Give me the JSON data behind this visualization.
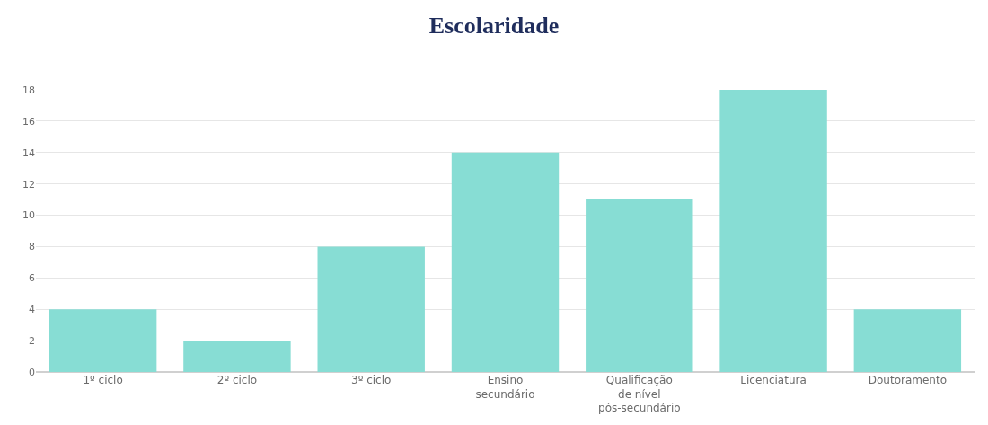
{
  "chart_data": {
    "type": "bar",
    "title": "Escolaridade",
    "categories": [
      "1º ciclo",
      "2º ciclo",
      "3º ciclo",
      "Ensino\nsecundário",
      "Qualificação\nde nível\npós-secundário",
      "Licenciatura",
      "Doutoramento"
    ],
    "values": [
      4,
      2,
      8,
      14,
      11,
      18,
      4
    ],
    "color": "#87ddd4",
    "ylim": [
      0,
      18
    ],
    "yticks": [
      0,
      2,
      4,
      6,
      8,
      10,
      12,
      14,
      16,
      18
    ],
    "grid": "y"
  }
}
